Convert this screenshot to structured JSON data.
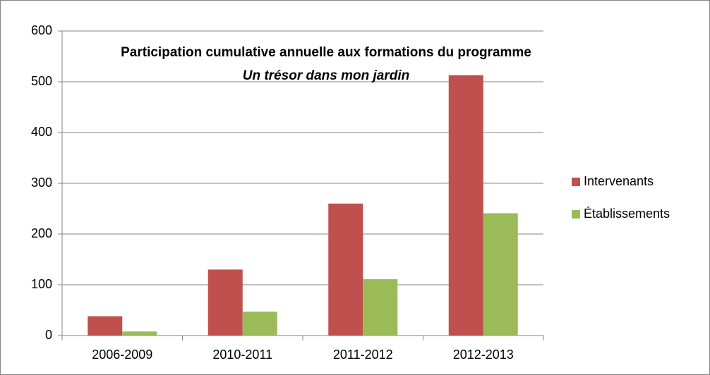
{
  "chart_data": {
    "type": "bar",
    "title": "Participation cumulative annuelle aux formations du programme",
    "subtitle": "Un trésor dans mon jardin",
    "categories": [
      "2006-2009",
      "2010-2011",
      "2011-2012",
      "2012-2013"
    ],
    "series": [
      {
        "name": "Intervenants",
        "color": "#c0504d",
        "values": [
          38,
          130,
          260,
          513
        ]
      },
      {
        "name": "Établissements",
        "color": "#9bbb59",
        "values": [
          8,
          47,
          111,
          241
        ]
      }
    ],
    "ylim": [
      0,
      600
    ],
    "yticks": [
      0,
      100,
      200,
      300,
      400,
      500,
      600
    ],
    "grid": true,
    "legend": "right"
  }
}
